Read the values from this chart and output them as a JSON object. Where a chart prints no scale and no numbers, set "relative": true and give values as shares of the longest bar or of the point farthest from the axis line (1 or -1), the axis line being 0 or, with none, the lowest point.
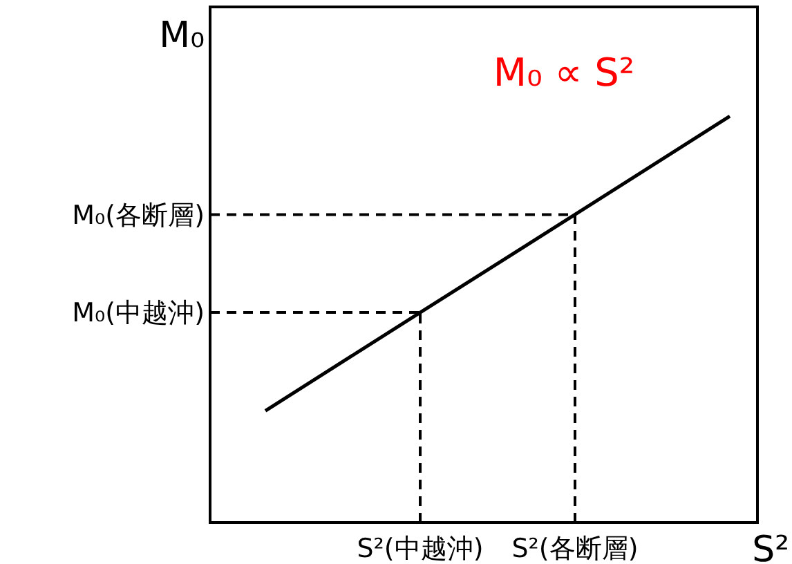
{
  "chart_data": {
    "type": "line",
    "title": "M₀ ∝ S²",
    "xlabel": "S²",
    "ylabel": "M₀",
    "relative": true,
    "categories": [
      null,
      "S²(中越沖)",
      "S²(各断層)",
      null
    ],
    "series": [
      {
        "color": "#000000",
        "values": [
          0.275,
          0.517,
          0.758,
          1
        ]
      }
    ],
    "ref_lines": [
      {
        "axis": "y",
        "value": 0.517,
        "label": "M₀(中越沖)",
        "line_style": "dashed"
      },
      {
        "axis": "y",
        "value": 0.758,
        "label": "M₀(各断層)",
        "line_style": "dashed"
      },
      {
        "axis": "x",
        "value": "S²(中越沖)",
        "line_style": "dashed"
      },
      {
        "axis": "x",
        "value": "S²(各断層)",
        "line_style": "dashed"
      }
    ],
    "grid": false,
    "marker": "none",
    "line_style": "solid"
  }
}
